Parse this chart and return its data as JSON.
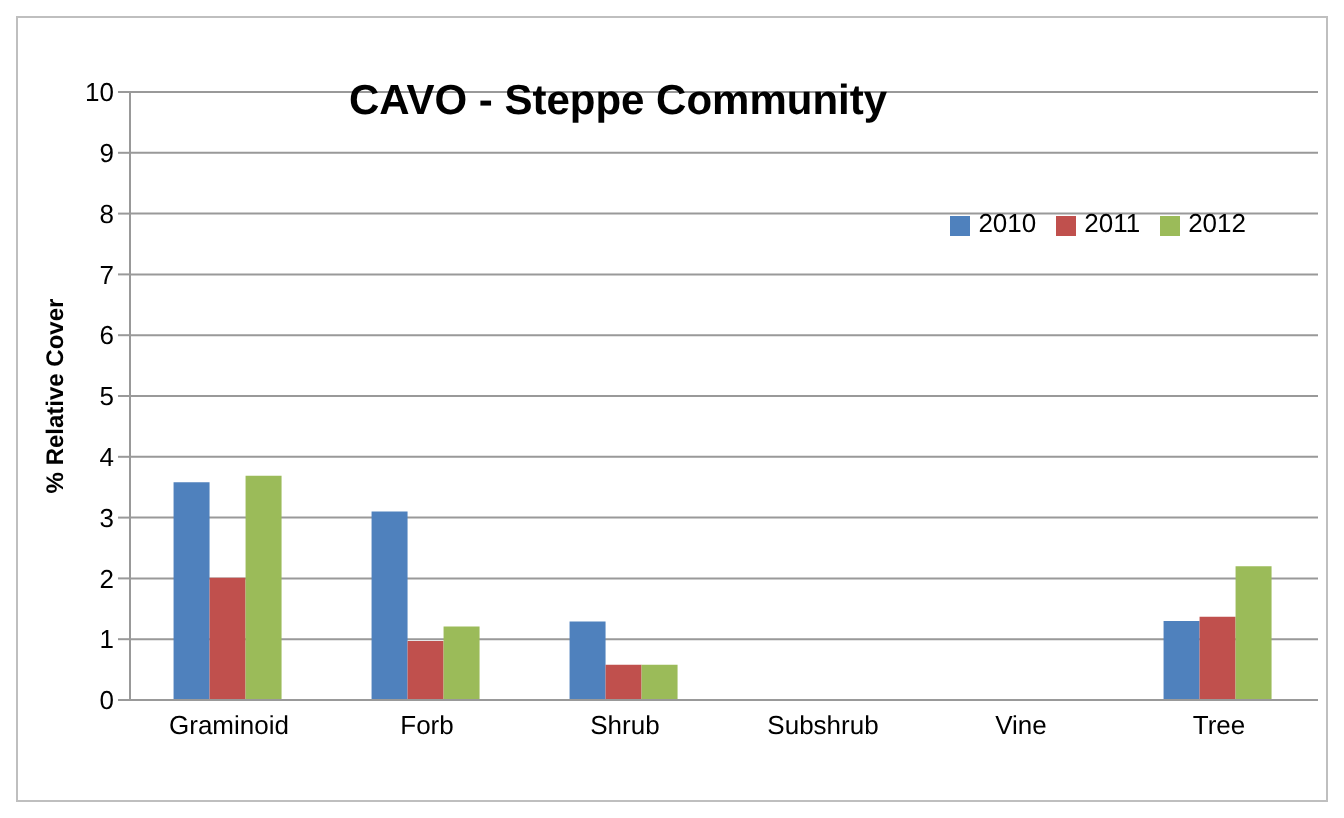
{
  "chart_data": {
    "type": "bar",
    "title": "CAVO - Steppe Community",
    "ylabel": "% Relative Cover",
    "categories": [
      "Graminoid",
      "Forb",
      "Shrub",
      "Subshrub",
      "Vine",
      "Tree"
    ],
    "series": [
      {
        "name": "2010",
        "color": "#4f81bd",
        "values": [
          3.58,
          3.1,
          1.29,
          0,
          0,
          1.3
        ]
      },
      {
        "name": "2011",
        "color": "#c0504d",
        "values": [
          2.01,
          0.97,
          0.58,
          0,
          0,
          1.37
        ]
      },
      {
        "name": "2012",
        "color": "#9bbb59",
        "values": [
          3.69,
          1.21,
          0.58,
          0,
          0,
          2.2
        ]
      }
    ],
    "ylim": [
      0,
      10
    ],
    "yticks": [
      0,
      1,
      2,
      3,
      4,
      5,
      6,
      7,
      8,
      9,
      10
    ],
    "grid": "y",
    "legend": "top right"
  }
}
